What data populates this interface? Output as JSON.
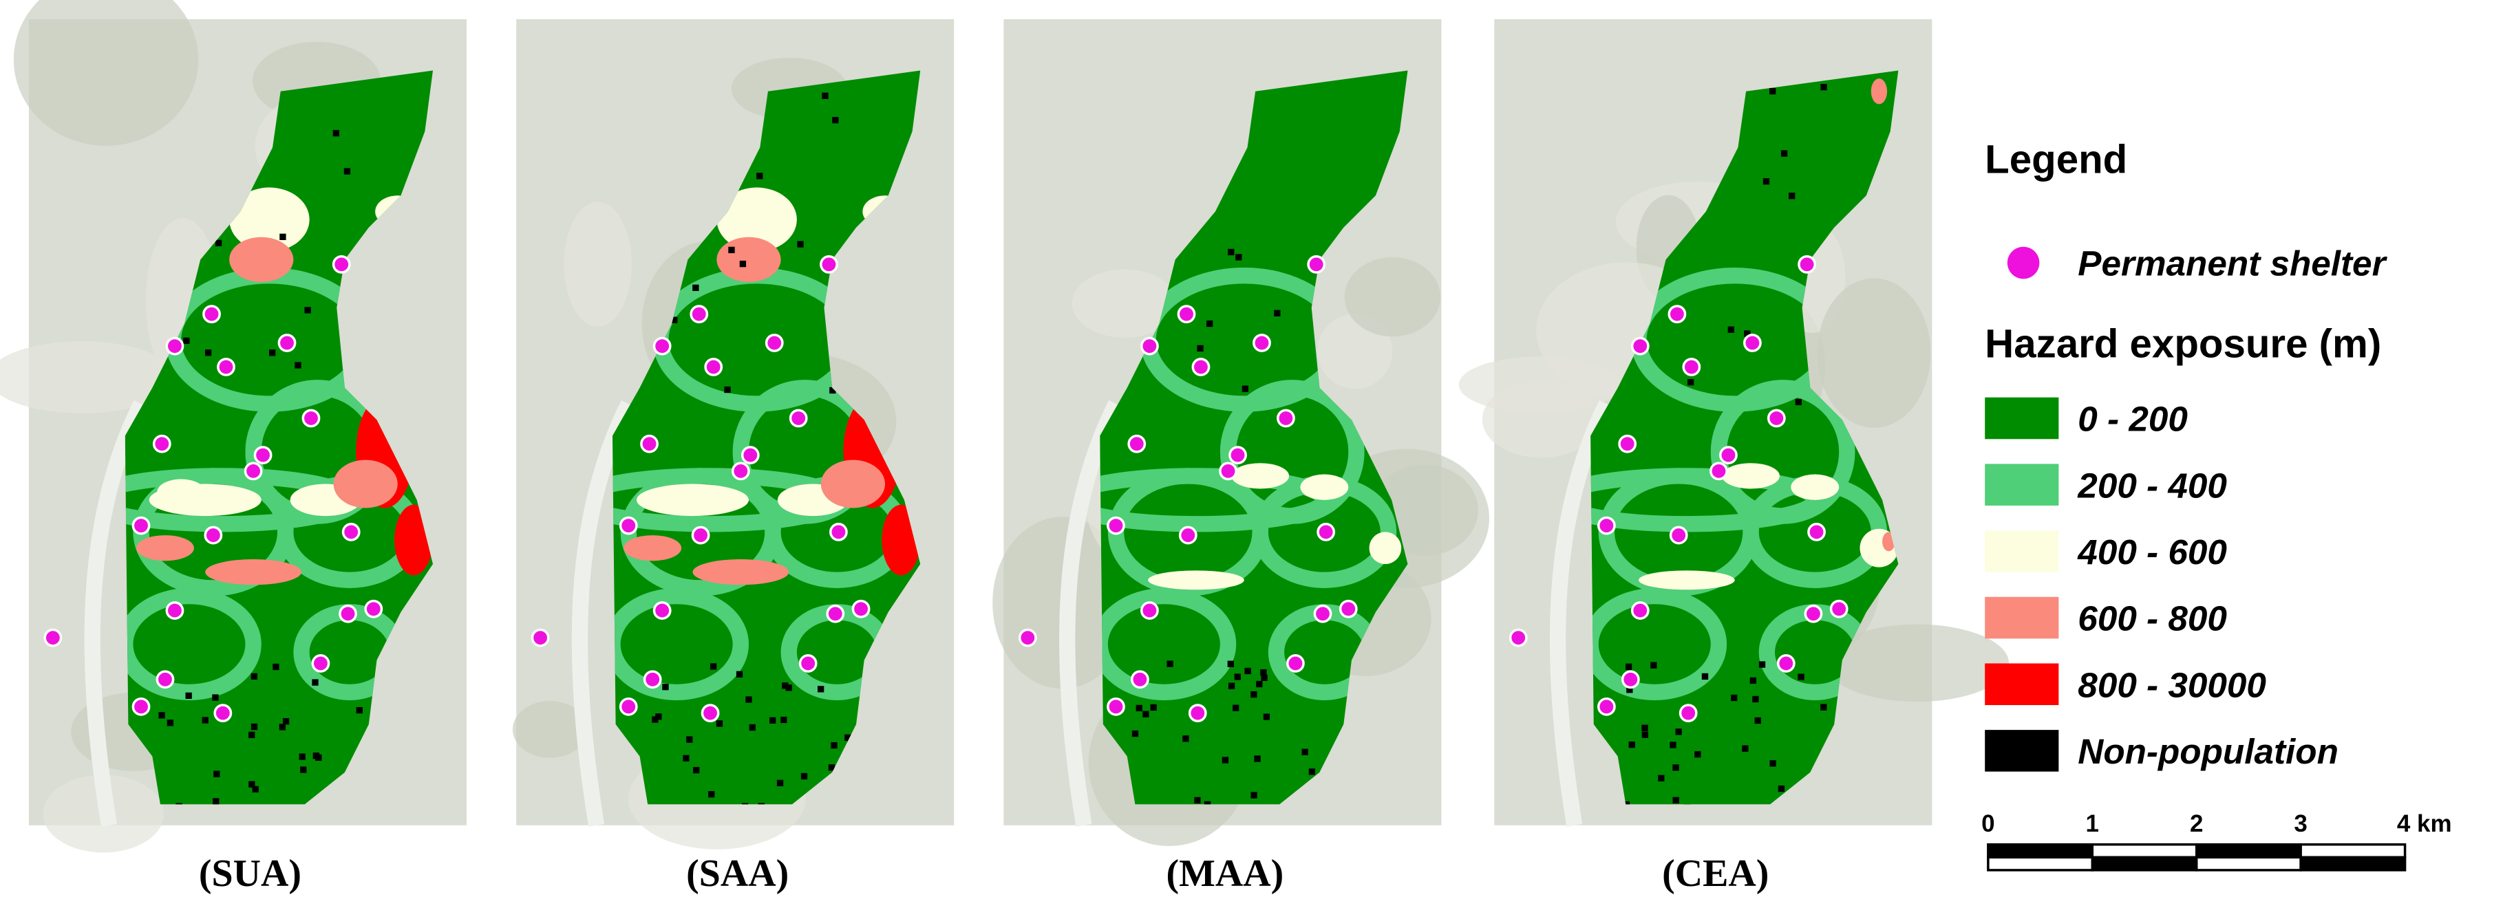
{
  "panels": [
    {
      "label": "(SUA)"
    },
    {
      "label": "(SAA)"
    },
    {
      "label": "(MAA)"
    },
    {
      "label": "(CEA)"
    }
  ],
  "legend": {
    "title": "Legend",
    "shelter": "Permanent shelter",
    "shelter_color": "#ee11dd",
    "hazard_title": "Hazard exposure (m)",
    "items": [
      {
        "label": "0 - 200",
        "color": "#008c00"
      },
      {
        "label": "200 - 400",
        "color": "#4fcf78"
      },
      {
        "label": "400 - 600",
        "color": "#fdfde0"
      },
      {
        "label": "600 - 800",
        "color": "#f98a7c"
      },
      {
        "label": "800 - 30000",
        "color": "#ff0000"
      },
      {
        "label": "Non-population",
        "color": "#000000"
      }
    ]
  },
  "scale": {
    "ticks": [
      "0",
      "1",
      "2",
      "3",
      "4 km"
    ]
  }
}
